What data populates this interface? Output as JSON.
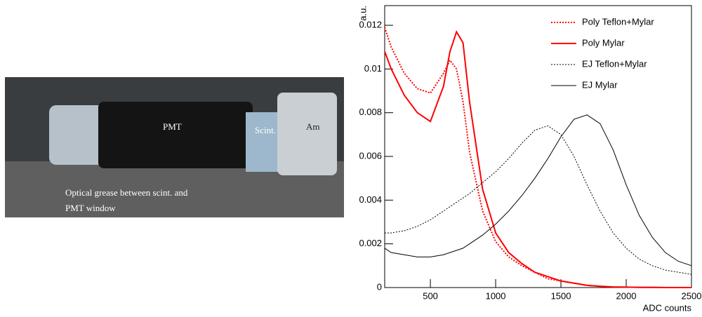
{
  "photo": {
    "labels": [
      "PMT",
      "Scint.",
      "Am"
    ],
    "caption": [
      "Optical grease between scint. and",
      "PMT window"
    ]
  },
  "chart_data": {
    "type": "line",
    "ylabel": "a.u.",
    "xlabel": "ADC counts",
    "xlim": [
      150,
      2500
    ],
    "ylim": [
      0,
      0.0129
    ],
    "xticks": [
      500,
      1000,
      1500,
      2000,
      2500
    ],
    "yticks": [
      0,
      0.002,
      0.004,
      0.006,
      0.008,
      0.01,
      0.012
    ],
    "legend": "upper right",
    "x": [
      150,
      200,
      300,
      400,
      500,
      600,
      650,
      700,
      750,
      800,
      900,
      1000,
      1100,
      1200,
      1300,
      1400,
      1500,
      1600,
      1700,
      1800,
      1900,
      2000,
      2100,
      2200,
      2300,
      2400,
      2500
    ],
    "series": [
      {
        "name": "Poly Teflon+Mylar",
        "color": "#ff0000",
        "style": "dotted",
        "width": 2,
        "values": [
          0.0119,
          0.011,
          0.0098,
          0.0091,
          0.0089,
          0.0098,
          0.0104,
          0.01,
          0.0085,
          0.0062,
          0.0035,
          0.0021,
          0.0014,
          0.001,
          0.0007,
          0.0004,
          0.0003,
          0.0002,
          0.0001,
          5e-05,
          2e-05,
          2e-05,
          1e-05,
          1e-05,
          0,
          0,
          0
        ]
      },
      {
        "name": "Poly Mylar",
        "color": "#ff0000",
        "style": "solid",
        "width": 2,
        "values": [
          0.0108,
          0.01,
          0.0088,
          0.008,
          0.0076,
          0.0092,
          0.0108,
          0.0117,
          0.0112,
          0.0085,
          0.0045,
          0.0025,
          0.0016,
          0.0011,
          0.0007,
          0.0005,
          0.0003,
          0.0002,
          0.0001,
          6e-05,
          3e-05,
          2e-05,
          1e-05,
          1e-05,
          0,
          0,
          0
        ]
      },
      {
        "name": "EJ Teflon+Mylar",
        "color": "#000000",
        "style": "dotted",
        "width": 1,
        "values": [
          0.0025,
          0.0025,
          0.0026,
          0.0028,
          0.0031,
          0.0035,
          0.0037,
          0.0039,
          0.0041,
          0.0043,
          0.0048,
          0.0053,
          0.0059,
          0.0066,
          0.0072,
          0.0074,
          0.007,
          0.006,
          0.0047,
          0.0035,
          0.0025,
          0.0018,
          0.0013,
          0.001,
          0.0008,
          0.0007,
          0.0006
        ]
      },
      {
        "name": "EJ Mylar",
        "color": "#000000",
        "style": "solid",
        "width": 1,
        "values": [
          0.0018,
          0.0016,
          0.0015,
          0.0014,
          0.0014,
          0.0015,
          0.0016,
          0.0017,
          0.0018,
          0.002,
          0.0024,
          0.0029,
          0.0035,
          0.0042,
          0.005,
          0.0059,
          0.0069,
          0.0077,
          0.0079,
          0.0075,
          0.0063,
          0.0047,
          0.0033,
          0.0023,
          0.0016,
          0.0012,
          0.001
        ]
      }
    ]
  }
}
